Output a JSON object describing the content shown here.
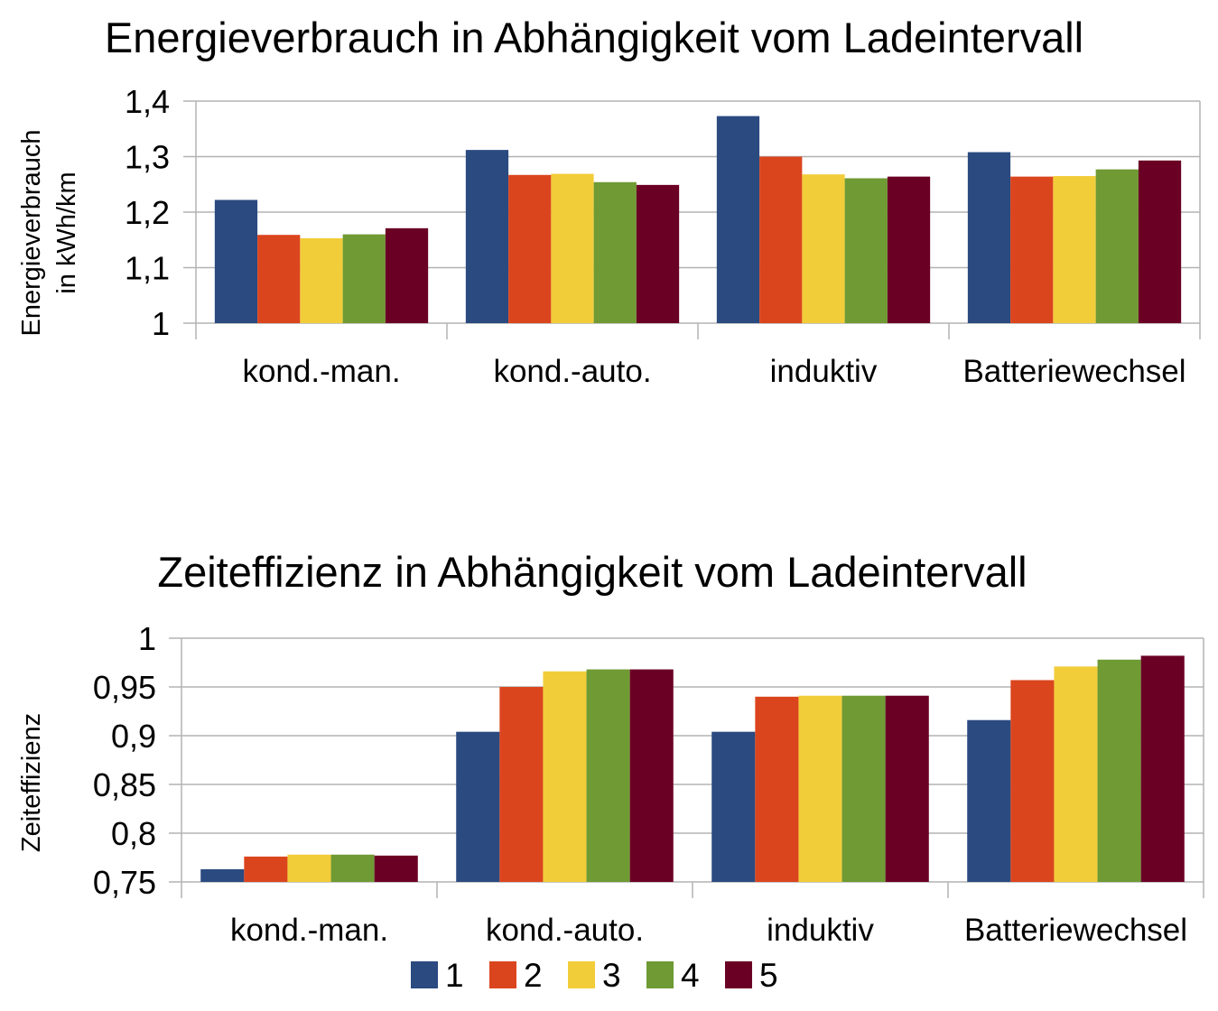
{
  "chart_data": [
    {
      "type": "bar",
      "title": "Energieverbrauch in Abhängigkeit vom Ladeintervall",
      "ylabel": [
        "Energieverbrauch",
        "in kWh/km"
      ],
      "xlabel": "",
      "categories": [
        "kond.-man.",
        "kond.-auto.",
        "induktiv",
        "Batteriewechsel"
      ],
      "ylim": [
        1,
        1.4
      ],
      "yticks": [
        "1",
        "1,1",
        "1,2",
        "1,3",
        "1,4"
      ],
      "ytick_values": [
        1,
        1.1,
        1.2,
        1.3,
        1.4
      ],
      "grid": true,
      "series": [
        {
          "name": "1",
          "values": [
            1.222,
            1.312,
            1.373,
            1.308
          ]
        },
        {
          "name": "2",
          "values": [
            1.159,
            1.267,
            1.3,
            1.264
          ]
        },
        {
          "name": "3",
          "values": [
            1.153,
            1.269,
            1.268,
            1.265
          ]
        },
        {
          "name": "4",
          "values": [
            1.16,
            1.254,
            1.261,
            1.277
          ]
        },
        {
          "name": "5",
          "values": [
            1.171,
            1.249,
            1.264,
            1.293
          ]
        }
      ]
    },
    {
      "type": "bar",
      "title": "Zeiteffizienz in Abhängigkeit vom Ladeintervall",
      "ylabel": [
        "Zeiteffizienz"
      ],
      "xlabel": "",
      "categories": [
        "kond.-man.",
        "kond.-auto.",
        "induktiv",
        "Batteriewechsel"
      ],
      "ylim": [
        0.75,
        1
      ],
      "yticks": [
        "0,75",
        "0,8",
        "0,85",
        "0,9",
        "0,95",
        "1"
      ],
      "ytick_values": [
        0.75,
        0.8,
        0.85,
        0.9,
        0.95,
        1
      ],
      "grid": true,
      "legend": "bottom",
      "series": [
        {
          "name": "1",
          "values": [
            0.763,
            0.904,
            0.904,
            0.916
          ]
        },
        {
          "name": "2",
          "values": [
            0.776,
            0.95,
            0.94,
            0.957
          ]
        },
        {
          "name": "3",
          "values": [
            0.778,
            0.966,
            0.941,
            0.971
          ]
        },
        {
          "name": "4",
          "values": [
            0.778,
            0.968,
            0.941,
            0.978
          ]
        },
        {
          "name": "5",
          "values": [
            0.777,
            0.968,
            0.941,
            0.982
          ]
        }
      ]
    }
  ],
  "colors": [
    "#2a4a80",
    "#db451e",
    "#f2cd3a",
    "#6f9a34",
    "#6b0025"
  ]
}
